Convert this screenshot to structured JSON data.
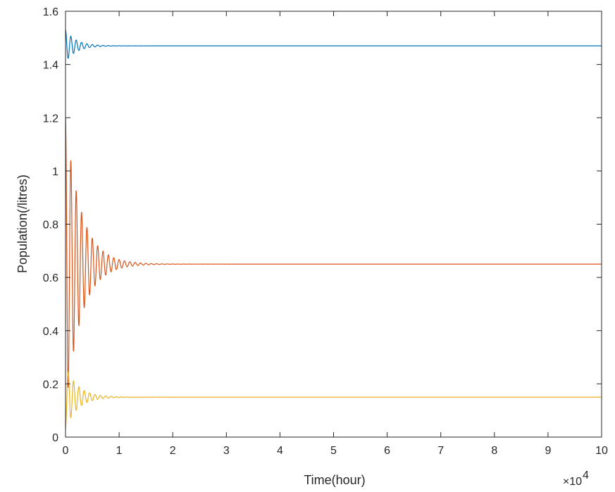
{
  "chart_data": {
    "type": "line",
    "title": "",
    "xlabel": "Time(hour)",
    "ylabel": "Population(/litres)",
    "x_exponent_label": "×10",
    "x_exponent_power": "4",
    "xlim": [
      0,
      10
    ],
    "ylim": [
      0,
      1.6
    ],
    "x_scale_factor": 10000,
    "xticks": [
      0,
      1,
      2,
      3,
      4,
      5,
      6,
      7,
      8,
      9,
      10
    ],
    "yticks": [
      0,
      0.2,
      0.4,
      0.6,
      0.8,
      1,
      1.2,
      1.4,
      1.6
    ],
    "xtick_labels": [
      "0",
      "1",
      "2",
      "3",
      "4",
      "5",
      "6",
      "7",
      "8",
      "9",
      "10"
    ],
    "ytick_labels": [
      "0",
      "0.2",
      "0.4",
      "0.6",
      "0.8",
      "1",
      "1.2",
      "1.4",
      "1.6"
    ],
    "grid": false,
    "series": [
      {
        "color": "#0072BD",
        "start_value": 1.53,
        "steady_state": 1.47,
        "first_trough": 1.42,
        "oscillation_period": 0.1,
        "settle_time": 0.9
      },
      {
        "color": "#D95319",
        "start_value": 1.2,
        "steady_state": 0.65,
        "first_trough": 0.3,
        "first_peak": 0.94,
        "oscillation_period": 0.1,
        "settle_time": 1.3
      },
      {
        "color": "#EDB120",
        "start_value": 0.03,
        "steady_state": 0.15,
        "first_peak": 0.27,
        "oscillation_period": 0.1,
        "settle_time": 1.0
      }
    ]
  }
}
